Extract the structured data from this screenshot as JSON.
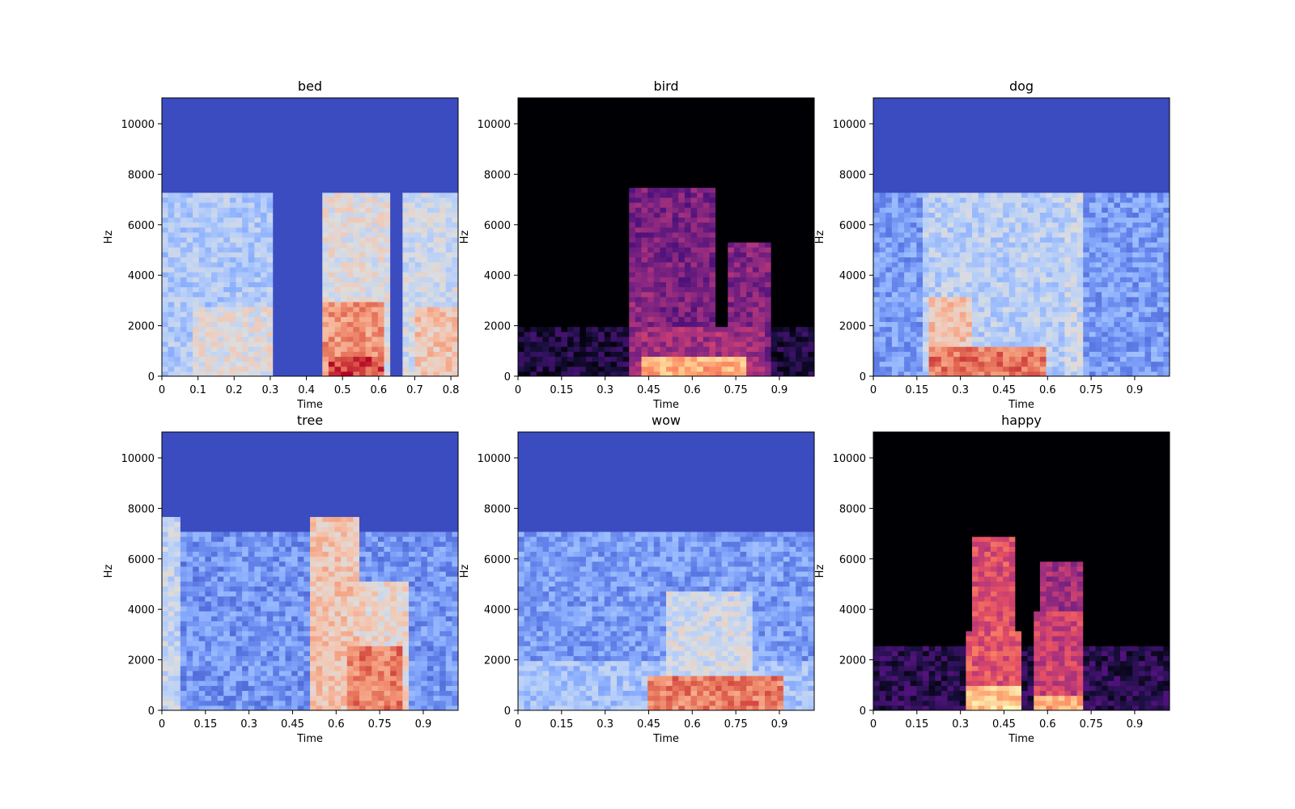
{
  "chart_data": [
    {
      "type": "heatmap",
      "title": "bed",
      "xlabel": "Time",
      "ylabel": "Hz",
      "xlim": [
        0,
        0.82
      ],
      "ylim": [
        0,
        11025
      ],
      "xticks": [
        "0",
        "0.1",
        "0.2",
        "0.3",
        "0.4",
        "0.5",
        "0.6",
        "0.7",
        "0.8"
      ],
      "xtick_values": [
        0,
        0.1,
        0.2,
        0.3,
        0.4,
        0.5,
        0.6,
        0.7,
        0.8
      ],
      "yticks": [
        "0",
        "2000",
        "4000",
        "6000",
        "8000",
        "10000"
      ],
      "ytick_values": [
        0,
        2000,
        4000,
        6000,
        8000,
        10000
      ],
      "colormap": "coolwarm",
      "energy_regions": [
        {
          "t_start": 0.0,
          "t_end": 0.31,
          "f_max": 7200,
          "level": 0.35
        },
        {
          "t_start": 0.08,
          "t_end": 0.3,
          "f_max": 2800,
          "level": 0.5
        },
        {
          "t_start": 0.44,
          "t_end": 0.63,
          "f_max": 7200,
          "level": 0.5
        },
        {
          "t_start": 0.45,
          "t_end": 0.62,
          "f_max": 3000,
          "level": 0.75
        },
        {
          "t_start": 0.46,
          "t_end": 0.62,
          "f_max": 800,
          "level": 0.92
        },
        {
          "t_start": 0.67,
          "t_end": 0.82,
          "f_max": 7200,
          "level": 0.45
        },
        {
          "t_start": 0.7,
          "t_end": 0.82,
          "f_max": 2800,
          "level": 0.62
        }
      ]
    },
    {
      "type": "heatmap",
      "title": "bird",
      "xlabel": "Time",
      "ylabel": "Hz",
      "xlim": [
        0,
        1.02
      ],
      "ylim": [
        0,
        11025
      ],
      "xticks": [
        "0",
        "0.15",
        "0.3",
        "0.45",
        "0.6",
        "0.75",
        "0.9"
      ],
      "xtick_values": [
        0,
        0.15,
        0.3,
        0.45,
        0.6,
        0.75,
        0.9
      ],
      "yticks": [
        "0",
        "2000",
        "4000",
        "6000",
        "8000",
        "10000"
      ],
      "ytick_values": [
        0,
        2000,
        4000,
        6000,
        8000,
        10000
      ],
      "colormap": "magma",
      "energy_regions": [
        {
          "t_start": 0.0,
          "t_end": 1.02,
          "f_max": 2000,
          "level": 0.12
        },
        {
          "t_start": 0.41,
          "t_end": 0.85,
          "f_max": 2000,
          "level": 0.45
        },
        {
          "t_start": 0.42,
          "t_end": 0.78,
          "f_max": 700,
          "level": 0.82
        },
        {
          "t_start": 0.39,
          "t_end": 0.47,
          "f_max": 5200,
          "level": 0.4
        },
        {
          "t_start": 0.73,
          "t_end": 0.88,
          "f_max": 5400,
          "level": 0.38
        },
        {
          "t_start": 0.39,
          "t_end": 0.67,
          "f_max": 7500,
          "level": 0.35
        }
      ]
    },
    {
      "type": "heatmap",
      "title": "dog",
      "xlabel": "Time",
      "ylabel": "Hz",
      "xlim": [
        0,
        1.02
      ],
      "ylim": [
        0,
        11025
      ],
      "xticks": [
        "0",
        "0.15",
        "0.3",
        "0.45",
        "0.6",
        "0.75",
        "0.9"
      ],
      "xtick_values": [
        0,
        0.15,
        0.3,
        0.45,
        0.6,
        0.75,
        0.9
      ],
      "yticks": [
        "0",
        "2000",
        "4000",
        "6000",
        "8000",
        "10000"
      ],
      "ytick_values": [
        0,
        2000,
        4000,
        6000,
        8000,
        10000
      ],
      "colormap": "coolwarm",
      "energy_regions": [
        {
          "t_start": 0.0,
          "t_end": 1.02,
          "f_max": 7200,
          "level": 0.2
        },
        {
          "t_start": 0.18,
          "t_end": 0.7,
          "f_max": 7200,
          "level": 0.38
        },
        {
          "t_start": 0.2,
          "t_end": 0.35,
          "f_max": 3200,
          "level": 0.62
        },
        {
          "t_start": 0.2,
          "t_end": 0.6,
          "f_max": 1200,
          "level": 0.82
        },
        {
          "t_start": 0.65,
          "t_end": 0.72,
          "f_max": 7300,
          "level": 0.42
        }
      ]
    },
    {
      "type": "heatmap",
      "title": "tree",
      "xlabel": "Time",
      "ylabel": "Hz",
      "xlim": [
        0,
        1.02
      ],
      "ylim": [
        0,
        11025
      ],
      "xticks": [
        "0",
        "0.15",
        "0.3",
        "0.45",
        "0.6",
        "0.75",
        "0.9"
      ],
      "xtick_values": [
        0,
        0.15,
        0.3,
        0.45,
        0.6,
        0.75,
        0.9
      ],
      "yticks": [
        "0",
        "2000",
        "4000",
        "6000",
        "8000",
        "10000"
      ],
      "ytick_values": [
        0,
        2000,
        4000,
        6000,
        8000,
        10000
      ],
      "colormap": "coolwarm",
      "energy_regions": [
        {
          "t_start": 0.0,
          "t_end": 1.02,
          "f_max": 7000,
          "level": 0.18
        },
        {
          "t_start": 0.0,
          "t_end": 0.06,
          "f_max": 7600,
          "level": 0.42
        },
        {
          "t_start": 0.51,
          "t_end": 0.67,
          "f_max": 7600,
          "level": 0.62
        },
        {
          "t_start": 0.6,
          "t_end": 0.85,
          "f_max": 5200,
          "level": 0.55
        },
        {
          "t_start": 0.63,
          "t_end": 0.82,
          "f_max": 2600,
          "level": 0.8
        }
      ]
    },
    {
      "type": "heatmap",
      "title": "wow",
      "xlabel": "Time",
      "ylabel": "Hz",
      "xlim": [
        0,
        1.02
      ],
      "ylim": [
        0,
        11025
      ],
      "xticks": [
        "0",
        "0.15",
        "0.3",
        "0.45",
        "0.6",
        "0.75",
        "0.9"
      ],
      "xtick_values": [
        0,
        0.15,
        0.3,
        0.45,
        0.6,
        0.75,
        0.9
      ],
      "yticks": [
        "0",
        "2000",
        "4000",
        "6000",
        "8000",
        "10000"
      ],
      "ytick_values": [
        0,
        2000,
        4000,
        6000,
        8000,
        10000
      ],
      "colormap": "coolwarm",
      "energy_regions": [
        {
          "t_start": 0.0,
          "t_end": 1.02,
          "f_max": 7000,
          "level": 0.2
        },
        {
          "t_start": 0.0,
          "t_end": 1.02,
          "f_max": 2000,
          "level": 0.32
        },
        {
          "t_start": 0.5,
          "t_end": 0.8,
          "f_max": 4800,
          "level": 0.45
        },
        {
          "t_start": 0.45,
          "t_end": 0.92,
          "f_max": 1300,
          "level": 0.8
        }
      ]
    },
    {
      "type": "heatmap",
      "title": "happy",
      "xlabel": "Time",
      "ylabel": "Hz",
      "xlim": [
        0,
        1.02
      ],
      "ylim": [
        0,
        11025
      ],
      "xticks": [
        "0",
        "0.15",
        "0.3",
        "0.45",
        "0.6",
        "0.75",
        "0.9"
      ],
      "xtick_values": [
        0,
        0.15,
        0.3,
        0.45,
        0.6,
        0.75,
        0.9
      ],
      "yticks": [
        "0",
        "2000",
        "4000",
        "6000",
        "8000",
        "10000"
      ],
      "ytick_values": [
        0,
        2000,
        4000,
        6000,
        8000,
        10000
      ],
      "colormap": "magma",
      "energy_regions": [
        {
          "t_start": 0.0,
          "t_end": 1.02,
          "f_max": 2500,
          "level": 0.15
        },
        {
          "t_start": 0.32,
          "t_end": 0.5,
          "f_max": 3200,
          "level": 0.62
        },
        {
          "t_start": 0.32,
          "t_end": 0.5,
          "f_max": 900,
          "level": 0.9
        },
        {
          "t_start": 0.35,
          "t_end": 0.49,
          "f_max": 6800,
          "level": 0.6
        },
        {
          "t_start": 0.55,
          "t_end": 0.72,
          "f_max": 4000,
          "level": 0.55
        },
        {
          "t_start": 0.55,
          "t_end": 0.72,
          "f_max": 600,
          "level": 0.82
        },
        {
          "t_start": 0.57,
          "t_end": 0.72,
          "f_max": 6000,
          "level": 0.45
        }
      ]
    }
  ]
}
